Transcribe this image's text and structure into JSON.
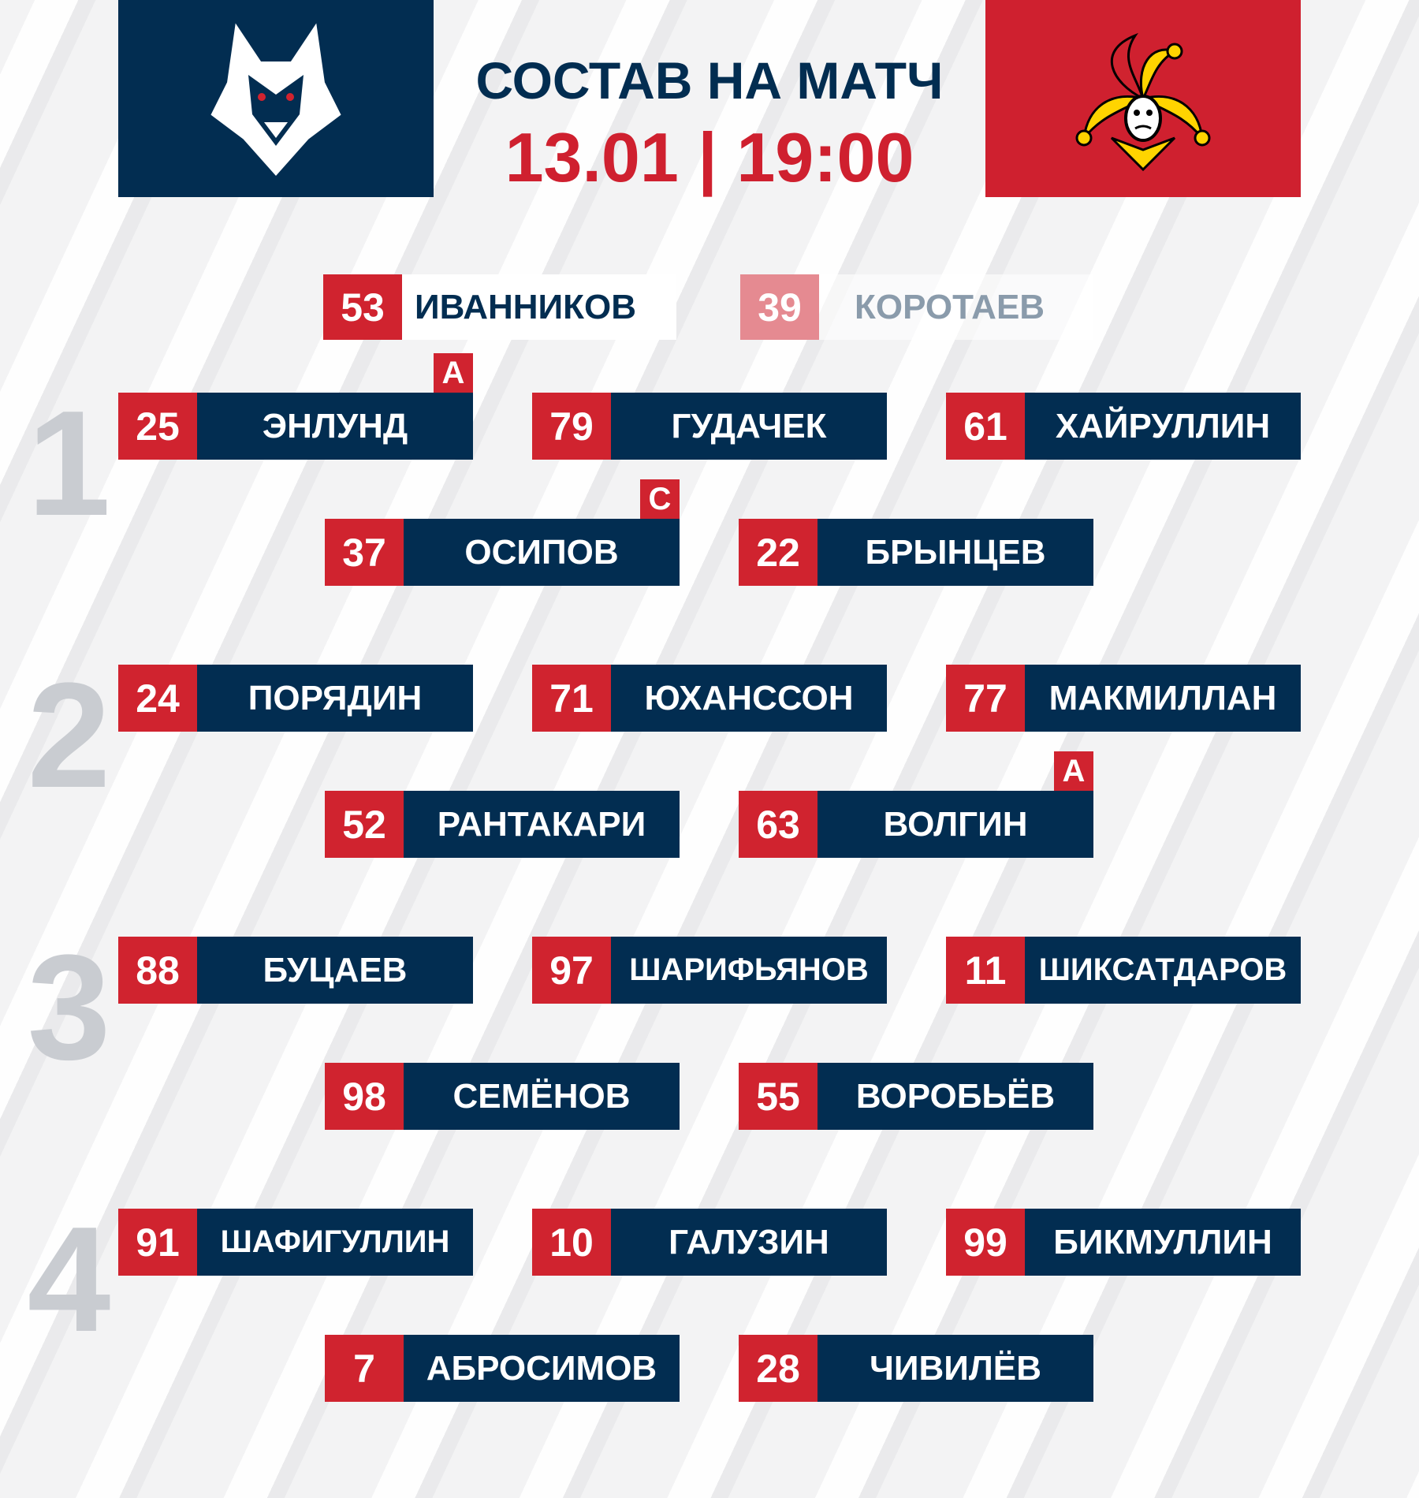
{
  "header": {
    "title": "СОСТАВ НА МАТЧ",
    "datetime": "13.01 | 19:00",
    "home_logo": "wolf-logo",
    "away_logo": "jester-logo"
  },
  "colors": {
    "navy": "#022d51",
    "red": "#d0232f",
    "line_number": "#c9ccd1"
  },
  "goalies": [
    {
      "number": "53",
      "name": "ИВАННИКОВ",
      "starting": true
    },
    {
      "number": "39",
      "name": "КОРОТАЕВ",
      "starting": false
    }
  ],
  "lines": [
    {
      "label": "1",
      "forwards": [
        {
          "number": "25",
          "name": "ЭНЛУНД",
          "badge": "А"
        },
        {
          "number": "79",
          "name": "ГУДАЧЕК"
        },
        {
          "number": "61",
          "name": "ХАЙРУЛЛИН"
        }
      ],
      "defense": [
        {
          "number": "37",
          "name": "ОСИПОВ",
          "badge": "С"
        },
        {
          "number": "22",
          "name": "БРЫНЦЕВ"
        }
      ]
    },
    {
      "label": "2",
      "forwards": [
        {
          "number": "24",
          "name": "ПОРЯДИН"
        },
        {
          "number": "71",
          "name": "ЮХАНССОН"
        },
        {
          "number": "77",
          "name": "МАКМИЛЛАН"
        }
      ],
      "defense": [
        {
          "number": "52",
          "name": "РАНТАКАРИ"
        },
        {
          "number": "63",
          "name": "ВОЛГИН",
          "badge": "А"
        }
      ]
    },
    {
      "label": "3",
      "forwards": [
        {
          "number": "88",
          "name": "БУЦАЕВ"
        },
        {
          "number": "97",
          "name": "ШАРИФЬЯНОВ"
        },
        {
          "number": "11",
          "name": "ШИКСАТДАРОВ"
        }
      ],
      "defense": [
        {
          "number": "98",
          "name": "СЕМЁНОВ"
        },
        {
          "number": "55",
          "name": "ВОРОБЬЁВ"
        }
      ]
    },
    {
      "label": "4",
      "forwards": [
        {
          "number": "91",
          "name": "ШАФИГУЛЛИН"
        },
        {
          "number": "10",
          "name": "ГАЛУЗИН"
        },
        {
          "number": "99",
          "name": "БИКМУЛЛИН"
        }
      ],
      "defense": [
        {
          "number": "7",
          "name": "АБРОСИМОВ"
        },
        {
          "number": "28",
          "name": "ЧИВИЛЁВ"
        }
      ]
    }
  ]
}
